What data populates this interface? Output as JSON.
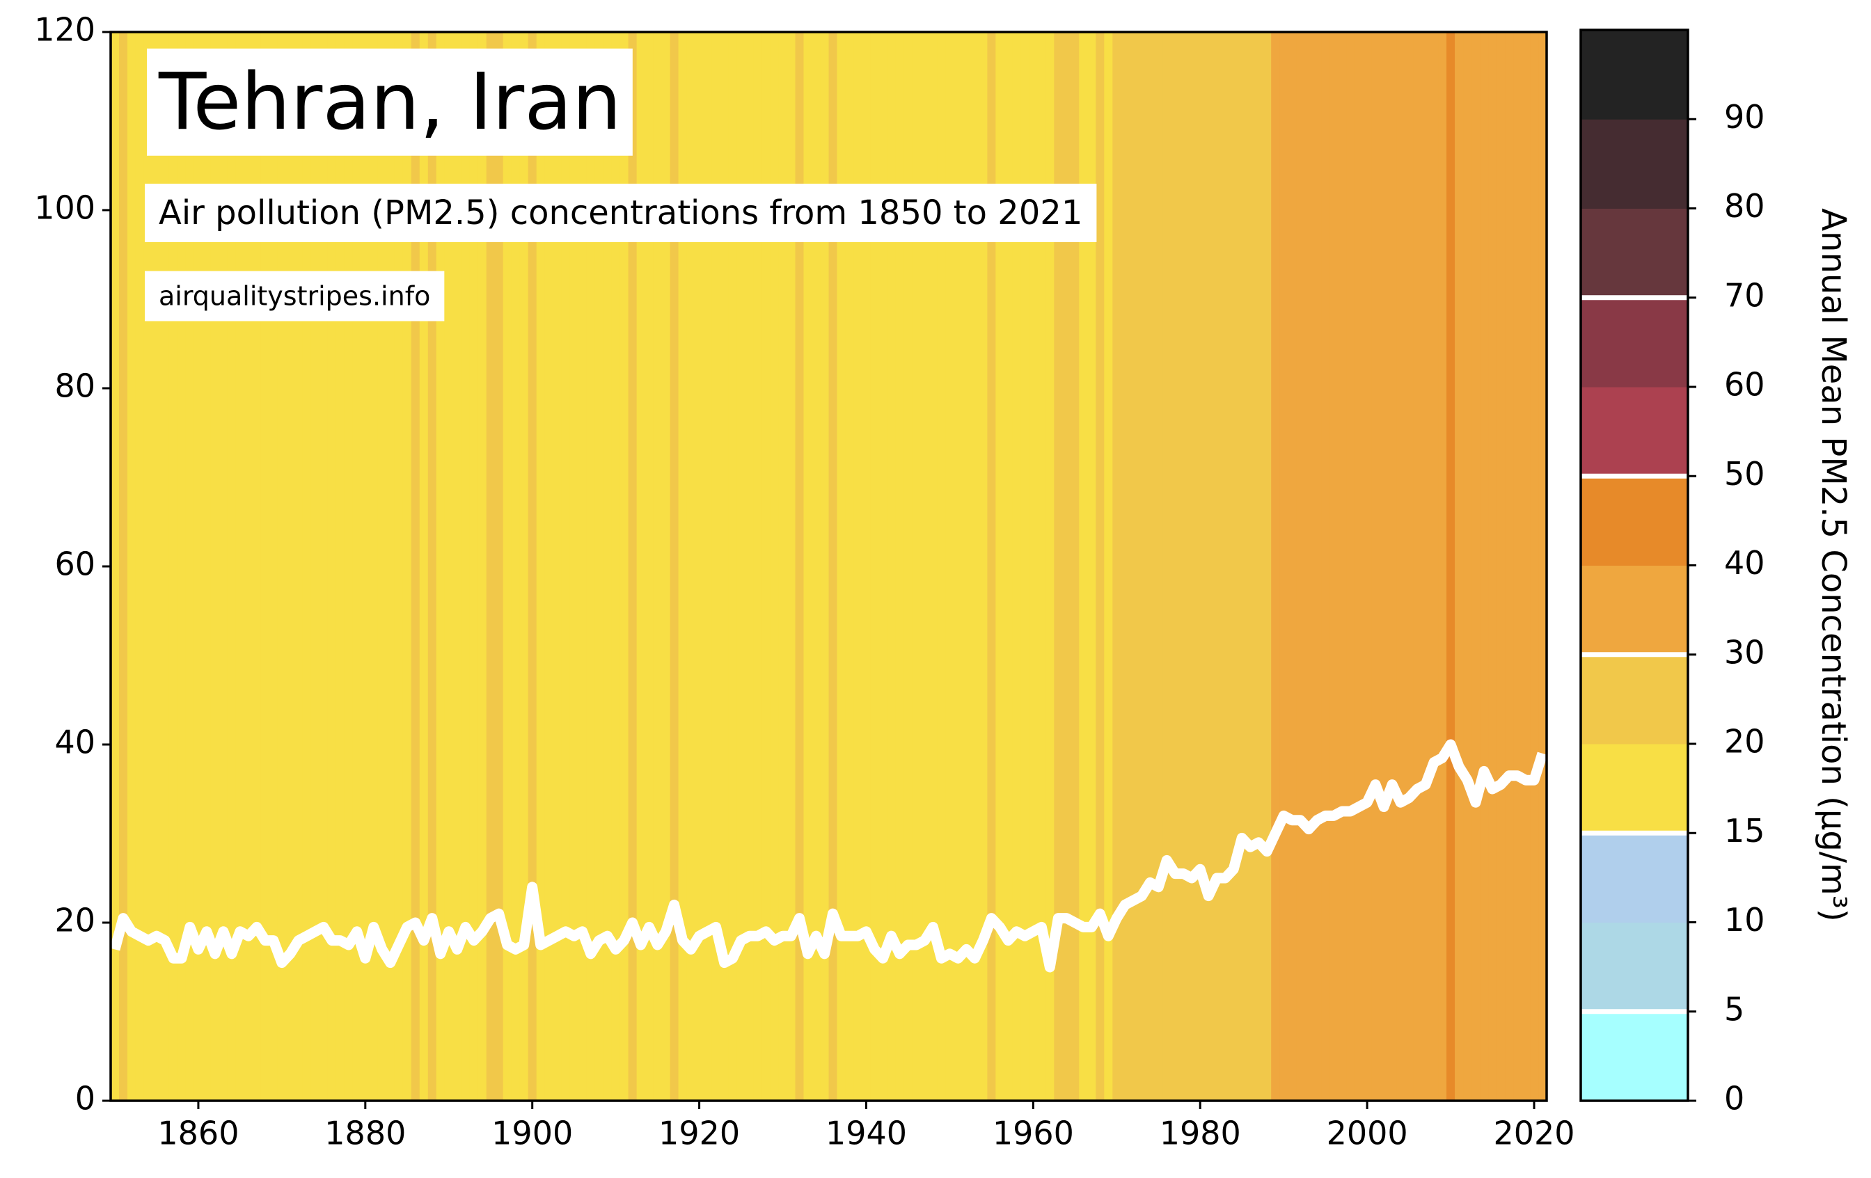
{
  "chart_data": {
    "type": "stripes-line",
    "title": "Tehran, Iran",
    "subtitle": "Air pollution (PM2.5) concentrations from 1850 to 2021",
    "source": "airqualitystripes.info",
    "x": [
      1850,
      1851,
      1852,
      1853,
      1854,
      1855,
      1856,
      1857,
      1858,
      1859,
      1860,
      1861,
      1862,
      1863,
      1864,
      1865,
      1866,
      1867,
      1868,
      1869,
      1870,
      1871,
      1872,
      1873,
      1874,
      1875,
      1876,
      1877,
      1878,
      1879,
      1880,
      1881,
      1882,
      1883,
      1884,
      1885,
      1886,
      1887,
      1888,
      1889,
      1890,
      1891,
      1892,
      1893,
      1894,
      1895,
      1896,
      1897,
      1898,
      1899,
      1900,
      1901,
      1902,
      1903,
      1904,
      1905,
      1906,
      1907,
      1908,
      1909,
      1910,
      1911,
      1912,
      1913,
      1914,
      1915,
      1916,
      1917,
      1918,
      1919,
      1920,
      1921,
      1922,
      1923,
      1924,
      1925,
      1926,
      1927,
      1928,
      1929,
      1930,
      1931,
      1932,
      1933,
      1934,
      1935,
      1936,
      1937,
      1938,
      1939,
      1940,
      1941,
      1942,
      1943,
      1944,
      1945,
      1946,
      1947,
      1948,
      1949,
      1950,
      1951,
      1952,
      1953,
      1954,
      1955,
      1956,
      1957,
      1958,
      1959,
      1960,
      1961,
      1962,
      1963,
      1964,
      1965,
      1966,
      1967,
      1968,
      1969,
      1970,
      1971,
      1972,
      1973,
      1974,
      1975,
      1976,
      1977,
      1978,
      1979,
      1980,
      1981,
      1982,
      1983,
      1984,
      1985,
      1986,
      1987,
      1988,
      1989,
      1990,
      1991,
      1992,
      1993,
      1994,
      1995,
      1996,
      1997,
      1998,
      1999,
      2000,
      2001,
      2002,
      2003,
      2004,
      2005,
      2006,
      2007,
      2008,
      2009,
      2010,
      2011,
      2012,
      2013,
      2014,
      2015,
      2016,
      2017,
      2018,
      2019,
      2020,
      2021
    ],
    "values": [
      17,
      20.5,
      19,
      18.5,
      18,
      18.5,
      18,
      16,
      16,
      19.5,
      17,
      19,
      16.5,
      19,
      16.5,
      19,
      18.5,
      19.5,
      18,
      18,
      15.5,
      16.5,
      18,
      18.5,
      19,
      19.5,
      18,
      18,
      17.5,
      19,
      16,
      19.5,
      17,
      15.5,
      17.5,
      19.5,
      20,
      18,
      20.5,
      16.5,
      19,
      17,
      19.5,
      18,
      19,
      20.5,
      21,
      17.5,
      17,
      17.5,
      24,
      17.5,
      18,
      18.5,
      19,
      18.5,
      19,
      16.5,
      18,
      18.5,
      17,
      18,
      20,
      17.5,
      19.5,
      17.5,
      19,
      22,
      18,
      17,
      18.5,
      19,
      19.5,
      15.5,
      16,
      18,
      18.5,
      18.5,
      19,
      18,
      18.5,
      18.5,
      20.5,
      16.5,
      18.5,
      16.5,
      21,
      18.5,
      18.5,
      18.5,
      19,
      17,
      16,
      18.5,
      16.5,
      17.5,
      17.5,
      18,
      19.5,
      16,
      16.5,
      16,
      17,
      16,
      18,
      20.5,
      19.5,
      18,
      19,
      18.5,
      19,
      19.5,
      15,
      20.5,
      20.5,
      20,
      19.5,
      19.5,
      21,
      18.5,
      20.5,
      22,
      22.5,
      23,
      24.5,
      24,
      27,
      25.5,
      25.5,
      25,
      26,
      23,
      25,
      25,
      26,
      29.5,
      28.5,
      29,
      28,
      30,
      32,
      31.5,
      31.5,
      30.5,
      31.5,
      32,
      32,
      32.5,
      32.5,
      33,
      33.5,
      35.5,
      33,
      35.5,
      33.5,
      34,
      35,
      35.5,
      38,
      38.5,
      40,
      37.5,
      36,
      33.5,
      37,
      35,
      35.5,
      36.5,
      36.5,
      36,
      36,
      39
    ],
    "line_color": "#ffffff",
    "xlim": [
      1849.5,
      2021.5
    ],
    "xticks": [
      1860,
      1880,
      1900,
      1920,
      1940,
      1960,
      1980,
      2000,
      2020
    ],
    "ylim": [
      0,
      120
    ],
    "yticks": [
      0,
      20,
      40,
      60,
      80,
      100,
      120
    ],
    "colorbar": {
      "label": "Annual Mean PM2.5 Concentration (µg/m³)",
      "bounds": [
        0,
        5,
        10,
        15,
        20,
        30,
        40,
        50,
        60,
        70,
        80,
        90
      ],
      "colors": [
        "#a6ffff",
        "#add8e6",
        "#b0cfec",
        "#f8df45",
        "#f1c84a",
        "#efa73f",
        "#e78a29",
        "#ac4150",
        "#893946",
        "#66373d",
        "#452c31",
        "#232323"
      ],
      "lines": [
        5,
        15,
        30,
        50,
        70
      ]
    }
  }
}
